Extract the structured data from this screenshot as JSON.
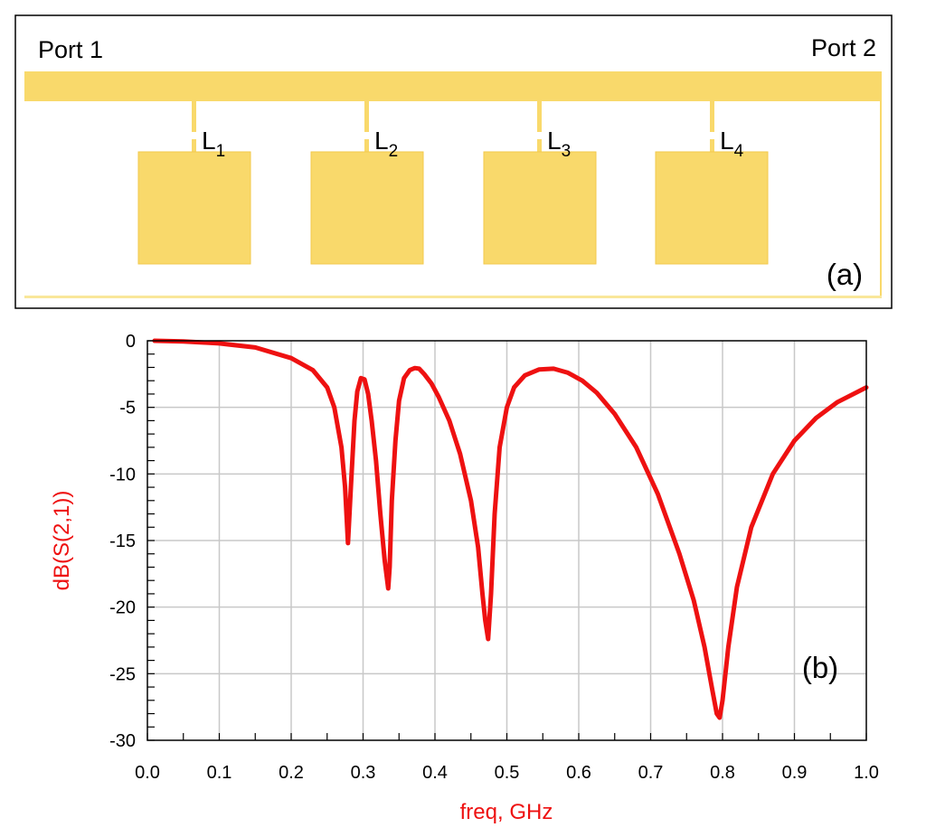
{
  "panel_a": {
    "port_left": "Port 1",
    "port_right": "Port 2",
    "stubs": [
      {
        "letter": "L",
        "sub": "1"
      },
      {
        "letter": "L",
        "sub": "2"
      },
      {
        "letter": "L",
        "sub": "3"
      },
      {
        "letter": "L",
        "sub": "4"
      }
    ],
    "tag": "(a)",
    "colors": {
      "metal": "#f9d96b",
      "metal_edge": "#f2c94c",
      "frame": "#000000"
    }
  },
  "chart_data": {
    "type": "line",
    "title": "",
    "tag": "(b)",
    "xlabel": "freq, GHz",
    "ylabel": "dB(S(2,1))",
    "xlim": [
      0.0,
      1.0
    ],
    "ylim": [
      -30,
      0
    ],
    "xticks": [
      0.0,
      0.1,
      0.2,
      0.3,
      0.4,
      0.5,
      0.6,
      0.7,
      0.8,
      0.9,
      1.0
    ],
    "xtick_labels": [
      "0.0",
      "0.1",
      "0.2",
      "0.3",
      "0.4",
      "0.5",
      "0.6",
      "0.7",
      "0.8",
      "0.9",
      "1.0"
    ],
    "yticks": [
      0,
      -5,
      -10,
      -15,
      -20,
      -25,
      -30
    ],
    "ytick_labels": [
      "0",
      "-5",
      "-10",
      "-15",
      "-20",
      "-25",
      "-30"
    ],
    "grid": true,
    "color": "#ee1111",
    "series": [
      {
        "x": [
          0.01,
          0.05,
          0.1,
          0.15,
          0.2,
          0.23,
          0.25,
          0.26,
          0.27,
          0.275,
          0.279,
          0.283,
          0.288,
          0.292,
          0.297,
          0.302,
          0.307,
          0.312,
          0.318,
          0.324,
          0.33,
          0.335,
          0.337,
          0.34,
          0.345,
          0.35,
          0.357,
          0.365,
          0.372,
          0.378,
          0.385,
          0.395,
          0.405,
          0.42,
          0.435,
          0.45,
          0.46,
          0.466,
          0.47,
          0.474,
          0.478,
          0.483,
          0.49,
          0.5,
          0.51,
          0.525,
          0.545,
          0.565,
          0.585,
          0.605,
          0.625,
          0.65,
          0.68,
          0.71,
          0.74,
          0.76,
          0.775,
          0.785,
          0.792,
          0.796,
          0.8,
          0.808,
          0.82,
          0.84,
          0.87,
          0.9,
          0.93,
          0.96,
          1.0
        ],
        "y": [
          0,
          -0.05,
          -0.2,
          -0.5,
          -1.3,
          -2.2,
          -3.5,
          -5.0,
          -8.0,
          -11.0,
          -15.2,
          -11.0,
          -6.0,
          -3.8,
          -2.8,
          -2.9,
          -4.0,
          -6.0,
          -9.0,
          -13.0,
          -16.5,
          -18.6,
          -17.0,
          -12.0,
          -7.5,
          -4.5,
          -2.8,
          -2.2,
          -2.05,
          -2.1,
          -2.5,
          -3.2,
          -4.2,
          -6.0,
          -8.5,
          -12.0,
          -15.5,
          -19.0,
          -21.0,
          -22.4,
          -19.0,
          -13.0,
          -8.0,
          -5.0,
          -3.5,
          -2.6,
          -2.15,
          -2.1,
          -2.4,
          -3.0,
          -3.9,
          -5.5,
          -8.0,
          -11.5,
          -16.0,
          -19.5,
          -23.0,
          -26.0,
          -28.0,
          -28.3,
          -27.0,
          -23.0,
          -18.5,
          -14.0,
          -10.0,
          -7.5,
          -5.8,
          -4.6,
          -3.5
        ]
      }
    ]
  }
}
